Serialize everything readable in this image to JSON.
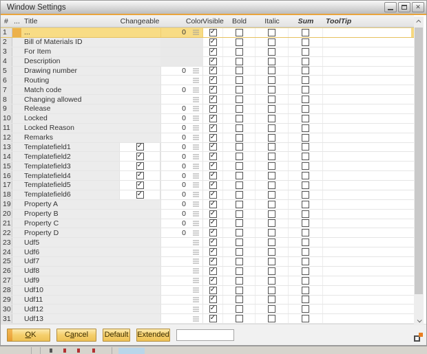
{
  "window": {
    "title": "Window Settings",
    "controls": [
      "minimize",
      "maximize",
      "close"
    ]
  },
  "icons": {
    "check": "✓",
    "close": "✕"
  },
  "colors": {
    "accent_line": "#E9A43C",
    "selection_fill": "#F8DC85",
    "selection_indicator": "#ECB14B",
    "button_fill": "#F5CF6B",
    "grip_orange": "#E87E20"
  },
  "table": {
    "headers": {
      "num": "#",
      "dots": "...",
      "title": "Title",
      "changeable": "Changeable",
      "color": "Color",
      "visible": "Visible",
      "bold": "Bold",
      "italic": "Italic",
      "sum": "Sum",
      "tooltip": "ToolTip"
    },
    "rows": [
      {
        "num": "1",
        "title": "...",
        "changeable": false,
        "color": "0",
        "color_editable": true,
        "visible": true,
        "bold": false,
        "italic": false,
        "sum": false,
        "tooltip": "",
        "selected": true
      },
      {
        "num": "2",
        "title": "Bill of Materials ID",
        "changeable": false,
        "color": "",
        "color_editable": false,
        "visible": true,
        "bold": false,
        "italic": false,
        "sum": false,
        "tooltip": "",
        "selected": false
      },
      {
        "num": "3",
        "title": "For Item",
        "changeable": false,
        "color": "",
        "color_editable": false,
        "visible": true,
        "bold": false,
        "italic": false,
        "sum": false,
        "tooltip": "",
        "selected": false
      },
      {
        "num": "4",
        "title": "Description",
        "changeable": false,
        "color": "",
        "color_editable": false,
        "visible": true,
        "bold": false,
        "italic": false,
        "sum": false,
        "tooltip": "",
        "selected": false
      },
      {
        "num": "5",
        "title": "Drawing number",
        "changeable": false,
        "color": "0",
        "color_editable": true,
        "visible": true,
        "bold": false,
        "italic": false,
        "sum": false,
        "tooltip": "",
        "selected": false
      },
      {
        "num": "6",
        "title": "Routing",
        "changeable": false,
        "color": "",
        "color_editable": true,
        "visible": true,
        "bold": false,
        "italic": false,
        "sum": false,
        "tooltip": "",
        "selected": false
      },
      {
        "num": "7",
        "title": "Match code",
        "changeable": false,
        "color": "0",
        "color_editable": true,
        "visible": true,
        "bold": false,
        "italic": false,
        "sum": false,
        "tooltip": "",
        "selected": false
      },
      {
        "num": "8",
        "title": "Changing allowed",
        "changeable": false,
        "color": "",
        "color_editable": true,
        "visible": true,
        "bold": false,
        "italic": false,
        "sum": false,
        "tooltip": "",
        "selected": false
      },
      {
        "num": "9",
        "title": "Release",
        "changeable": false,
        "color": "0",
        "color_editable": true,
        "visible": true,
        "bold": false,
        "italic": false,
        "sum": false,
        "tooltip": "",
        "selected": false
      },
      {
        "num": "10",
        "title": "Locked",
        "changeable": false,
        "color": "0",
        "color_editable": true,
        "visible": true,
        "bold": false,
        "italic": false,
        "sum": false,
        "tooltip": "",
        "selected": false
      },
      {
        "num": "11",
        "title": "Locked Reason",
        "changeable": false,
        "color": "0",
        "color_editable": true,
        "visible": true,
        "bold": false,
        "italic": false,
        "sum": false,
        "tooltip": "",
        "selected": false
      },
      {
        "num": "12",
        "title": "Remarks",
        "changeable": false,
        "color": "0",
        "color_editable": true,
        "visible": true,
        "bold": false,
        "italic": false,
        "sum": false,
        "tooltip": "",
        "selected": false
      },
      {
        "num": "13",
        "title": "Templatefield1",
        "changeable": true,
        "color": "0",
        "color_editable": true,
        "visible": true,
        "bold": false,
        "italic": false,
        "sum": false,
        "tooltip": "",
        "selected": false
      },
      {
        "num": "14",
        "title": "Templatefield2",
        "changeable": true,
        "color": "0",
        "color_editable": true,
        "visible": true,
        "bold": false,
        "italic": false,
        "sum": false,
        "tooltip": "",
        "selected": false
      },
      {
        "num": "15",
        "title": "Templatefield3",
        "changeable": true,
        "color": "0",
        "color_editable": true,
        "visible": true,
        "bold": false,
        "italic": false,
        "sum": false,
        "tooltip": "",
        "selected": false
      },
      {
        "num": "16",
        "title": "Templatefield4",
        "changeable": true,
        "color": "0",
        "color_editable": true,
        "visible": true,
        "bold": false,
        "italic": false,
        "sum": false,
        "tooltip": "",
        "selected": false
      },
      {
        "num": "17",
        "title": "Templatefield5",
        "changeable": true,
        "color": "0",
        "color_editable": true,
        "visible": true,
        "bold": false,
        "italic": false,
        "sum": false,
        "tooltip": "",
        "selected": false
      },
      {
        "num": "18",
        "title": "Templatefield6",
        "changeable": true,
        "color": "0",
        "color_editable": true,
        "visible": true,
        "bold": false,
        "italic": false,
        "sum": false,
        "tooltip": "",
        "selected": false
      },
      {
        "num": "19",
        "title": "Property A",
        "changeable": false,
        "color": "0",
        "color_editable": true,
        "visible": true,
        "bold": false,
        "italic": false,
        "sum": false,
        "tooltip": "",
        "selected": false
      },
      {
        "num": "20",
        "title": "Property B",
        "changeable": false,
        "color": "0",
        "color_editable": true,
        "visible": true,
        "bold": false,
        "italic": false,
        "sum": false,
        "tooltip": "",
        "selected": false
      },
      {
        "num": "21",
        "title": "Property C",
        "changeable": false,
        "color": "0",
        "color_editable": true,
        "visible": true,
        "bold": false,
        "italic": false,
        "sum": false,
        "tooltip": "",
        "selected": false
      },
      {
        "num": "22",
        "title": "Property D",
        "changeable": false,
        "color": "0",
        "color_editable": true,
        "visible": true,
        "bold": false,
        "italic": false,
        "sum": false,
        "tooltip": "",
        "selected": false
      },
      {
        "num": "23",
        "title": "Udf5",
        "changeable": false,
        "color": "",
        "color_editable": true,
        "visible": true,
        "bold": false,
        "italic": false,
        "sum": false,
        "tooltip": "",
        "selected": false
      },
      {
        "num": "24",
        "title": "Udf6",
        "changeable": false,
        "color": "",
        "color_editable": true,
        "visible": true,
        "bold": false,
        "italic": false,
        "sum": false,
        "tooltip": "",
        "selected": false
      },
      {
        "num": "25",
        "title": "Udf7",
        "changeable": false,
        "color": "",
        "color_editable": true,
        "visible": true,
        "bold": false,
        "italic": false,
        "sum": false,
        "tooltip": "",
        "selected": false
      },
      {
        "num": "26",
        "title": "Udf8",
        "changeable": false,
        "color": "",
        "color_editable": true,
        "visible": true,
        "bold": false,
        "italic": false,
        "sum": false,
        "tooltip": "",
        "selected": false
      },
      {
        "num": "27",
        "title": "Udf9",
        "changeable": false,
        "color": "",
        "color_editable": true,
        "visible": true,
        "bold": false,
        "italic": false,
        "sum": false,
        "tooltip": "",
        "selected": false
      },
      {
        "num": "28",
        "title": "Udf10",
        "changeable": false,
        "color": "",
        "color_editable": true,
        "visible": true,
        "bold": false,
        "italic": false,
        "sum": false,
        "tooltip": "",
        "selected": false
      },
      {
        "num": "29",
        "title": "Udf11",
        "changeable": false,
        "color": "",
        "color_editable": true,
        "visible": true,
        "bold": false,
        "italic": false,
        "sum": false,
        "tooltip": "",
        "selected": false
      },
      {
        "num": "30",
        "title": "Udf12",
        "changeable": false,
        "color": "",
        "color_editable": true,
        "visible": true,
        "bold": false,
        "italic": false,
        "sum": false,
        "tooltip": "",
        "selected": false
      },
      {
        "num": "31",
        "title": "Udf13",
        "changeable": false,
        "color": "",
        "color_editable": true,
        "visible": true,
        "bold": false,
        "italic": false,
        "sum": false,
        "tooltip": "",
        "selected": false
      }
    ]
  },
  "footer": {
    "buttons": [
      {
        "id": "ok",
        "label": "OK",
        "underline": 0,
        "primary": true
      },
      {
        "id": "cancel",
        "label": "Cancel",
        "underline": 1,
        "primary": false
      },
      {
        "id": "default",
        "label": "Default",
        "underline": -1,
        "primary": false
      },
      {
        "id": "extended",
        "label": "Extended",
        "underline": -1,
        "primary": false
      }
    ],
    "input_value": ""
  }
}
